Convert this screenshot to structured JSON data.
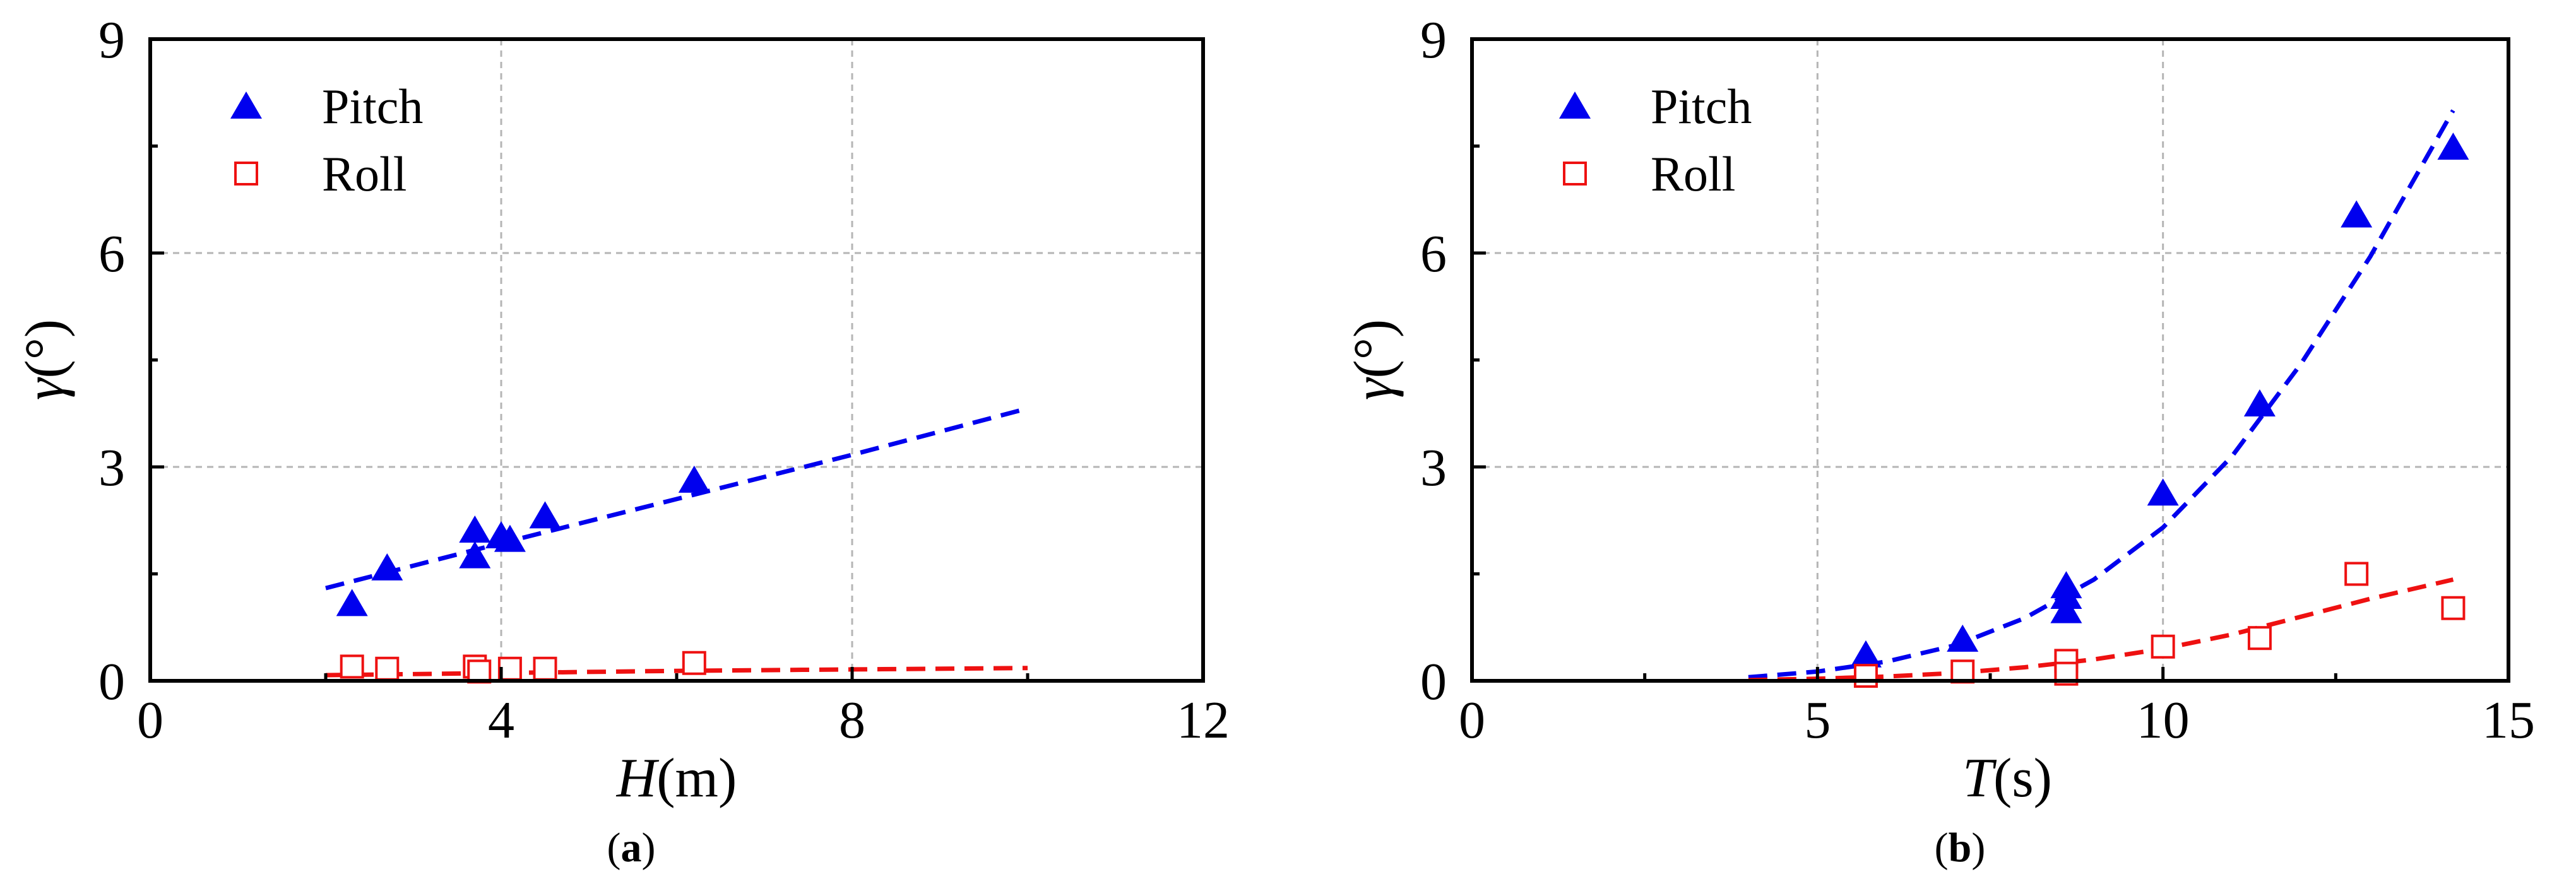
{
  "figure": {
    "colors": {
      "pitch": "#0000ee",
      "roll": "#ee1111",
      "grid": "#b5b5b5"
    }
  },
  "chart_data": [
    {
      "type": "scatter",
      "panel_label": "a",
      "xlabel_var": "H",
      "xlabel_unit": "(m)",
      "ylabel_var": "γ",
      "ylabel_unit": "(°)",
      "xlim": [
        0,
        12
      ],
      "ylim": [
        0,
        9
      ],
      "xticks": [
        0,
        4,
        8,
        12
      ],
      "xticks_minor": [
        2,
        6,
        10
      ],
      "yticks": [
        0,
        3,
        6,
        9
      ],
      "yticks_minor": [
        1.5,
        4.5,
        7.5
      ],
      "grid": true,
      "legend_position": "top-left",
      "series": [
        {
          "name": "Pitch",
          "marker": "filled-triangle",
          "color": "#0000ee",
          "points": [
            [
              2.3,
              1.05
            ],
            [
              2.7,
              1.55
            ],
            [
              3.7,
              2.08
            ],
            [
              3.7,
              1.72
            ],
            [
              4.0,
              2.0
            ],
            [
              4.1,
              1.95
            ],
            [
              4.5,
              2.28
            ],
            [
              6.2,
              2.78
            ]
          ],
          "fit": [
            [
              2.0,
              1.3
            ],
            [
              4.0,
              1.93
            ],
            [
              6.0,
              2.55
            ],
            [
              8.0,
              3.17
            ],
            [
              10.0,
              3.82
            ]
          ]
        },
        {
          "name": "Roll",
          "marker": "open-square",
          "color": "#ee1111",
          "points": [
            [
              2.3,
              0.2
            ],
            [
              2.7,
              0.17
            ],
            [
              3.7,
              0.2
            ],
            [
              3.75,
              0.13
            ],
            [
              4.1,
              0.17
            ],
            [
              4.5,
              0.17
            ],
            [
              6.2,
              0.25
            ]
          ],
          "fit": [
            [
              2.0,
              0.08
            ],
            [
              4.0,
              0.11
            ],
            [
              6.0,
              0.14
            ],
            [
              8.0,
              0.16
            ],
            [
              10.0,
              0.18
            ]
          ]
        }
      ]
    },
    {
      "type": "scatter",
      "panel_label": "b",
      "xlabel_var": "T",
      "xlabel_unit": "(s)",
      "ylabel_var": "γ",
      "ylabel_unit": "(°)",
      "xlim": [
        0,
        15
      ],
      "ylim": [
        0,
        9
      ],
      "xticks": [
        0,
        5,
        10,
        15
      ],
      "xticks_minor": [
        2.5,
        7.5,
        12.5
      ],
      "yticks": [
        0,
        3,
        6,
        9
      ],
      "yticks_minor": [
        1.5,
        4.5,
        7.5
      ],
      "grid": true,
      "legend_position": "top-left",
      "series": [
        {
          "name": "Pitch",
          "marker": "filled-triangle",
          "color": "#0000ee",
          "points": [
            [
              5.7,
              0.33
            ],
            [
              7.1,
              0.55
            ],
            [
              8.6,
              1.3
            ],
            [
              8.6,
              1.15
            ],
            [
              8.6,
              0.95
            ],
            [
              10.0,
              2.6
            ],
            [
              11.4,
              3.85
            ],
            [
              12.8,
              6.5
            ],
            [
              14.2,
              7.45
            ]
          ],
          "fit": [
            [
              4.0,
              0.05
            ],
            [
              5.0,
              0.13
            ],
            [
              6.0,
              0.27
            ],
            [
              7.0,
              0.5
            ],
            [
              8.0,
              0.88
            ],
            [
              9.0,
              1.42
            ],
            [
              10.0,
              2.15
            ],
            [
              11.0,
              3.15
            ],
            [
              12.0,
              4.45
            ],
            [
              13.0,
              5.95
            ],
            [
              14.2,
              8.0
            ]
          ]
        },
        {
          "name": "Roll",
          "marker": "open-square",
          "color": "#ee1111",
          "points": [
            [
              5.7,
              0.07
            ],
            [
              7.1,
              0.13
            ],
            [
              8.6,
              0.28
            ],
            [
              8.6,
              0.1
            ],
            [
              10.0,
              0.48
            ],
            [
              11.4,
              0.6
            ],
            [
              12.8,
              1.5
            ],
            [
              14.2,
              1.02
            ]
          ],
          "fit": [
            [
              4.0,
              0.01
            ],
            [
              5.0,
              0.03
            ],
            [
              6.0,
              0.06
            ],
            [
              7.0,
              0.11
            ],
            [
              8.0,
              0.19
            ],
            [
              9.0,
              0.3
            ],
            [
              10.0,
              0.45
            ],
            [
              11.0,
              0.65
            ],
            [
              12.0,
              0.9
            ],
            [
              13.0,
              1.15
            ],
            [
              14.2,
              1.42
            ]
          ]
        }
      ]
    }
  ]
}
